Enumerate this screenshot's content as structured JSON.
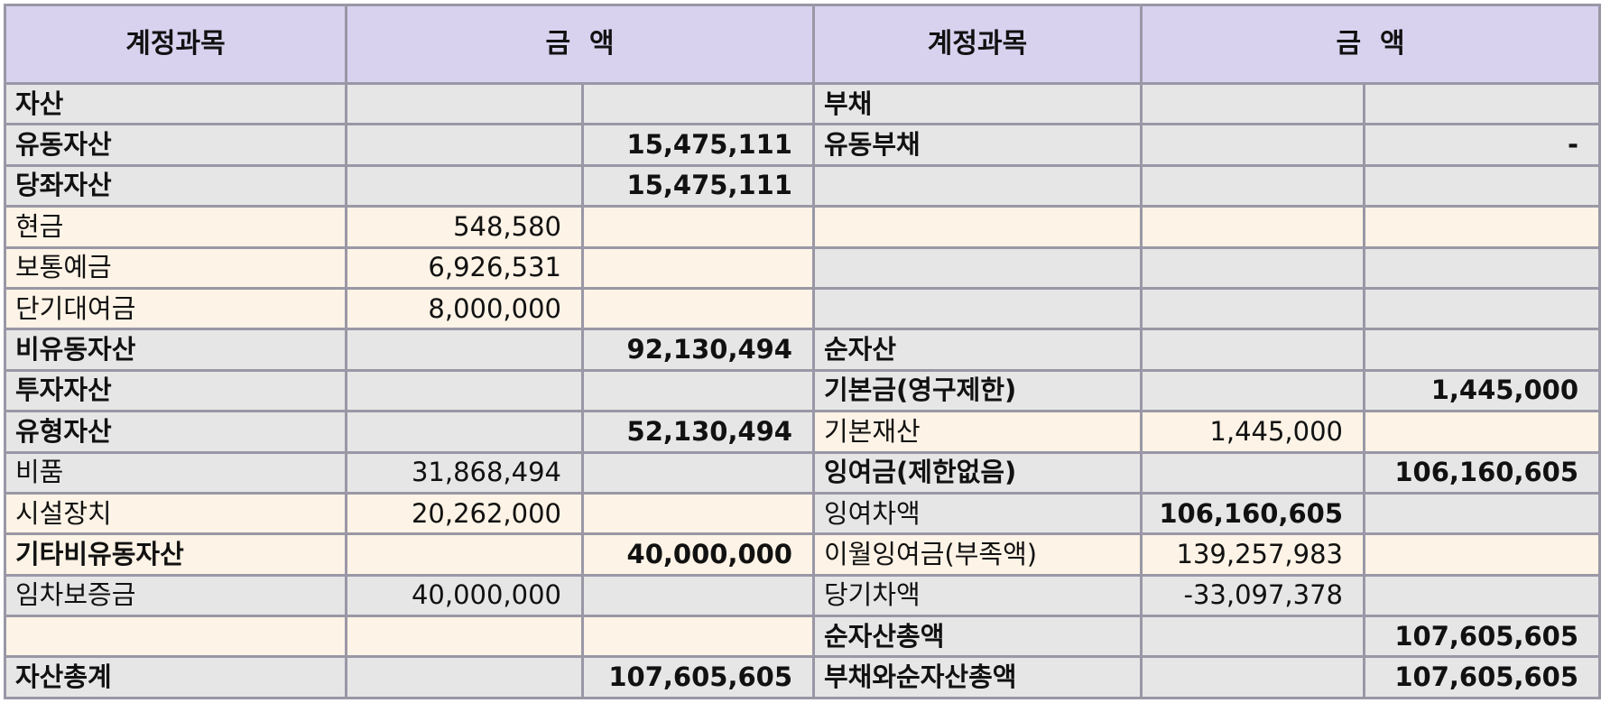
{
  "header": {
    "account_left": "계정과목",
    "amount_left": "금  액",
    "account_right": "계정과목",
    "amount_right": "금  액"
  },
  "rows": [
    {
      "l_name": "자산",
      "l_a": "",
      "l_b": "",
      "r_name": "부채",
      "r_a": "",
      "r_b": ""
    },
    {
      "l_name": "유동자산",
      "l_a": "",
      "l_b": "15,475,111",
      "r_name": "유동부채",
      "r_a": "",
      "r_b": "-"
    },
    {
      "l_name": "당좌자산",
      "l_a": "",
      "l_b": "15,475,111",
      "r_name": "",
      "r_a": "",
      "r_b": ""
    },
    {
      "l_name": "현금",
      "l_a": "548,580",
      "l_b": "",
      "r_name": "",
      "r_a": "",
      "r_b": ""
    },
    {
      "l_name": "보통예금",
      "l_a": "6,926,531",
      "l_b": "",
      "r_name": "",
      "r_a": "",
      "r_b": ""
    },
    {
      "l_name": "단기대여금",
      "l_a": "8,000,000",
      "l_b": "",
      "r_name": "",
      "r_a": "",
      "r_b": ""
    },
    {
      "l_name": "비유동자산",
      "l_a": "",
      "l_b": "92,130,494",
      "r_name": "순자산",
      "r_a": "",
      "r_b": ""
    },
    {
      "l_name": "투자자산",
      "l_a": "",
      "l_b": "",
      "r_name": "기본금(영구제한)",
      "r_a": "",
      "r_b": "1,445,000"
    },
    {
      "l_name": "유형자산",
      "l_a": "",
      "l_b": "52,130,494",
      "r_name": "기본재산",
      "r_a": "1,445,000",
      "r_b": ""
    },
    {
      "l_name": "비품",
      "l_a": "31,868,494",
      "l_b": "",
      "r_name": "잉여금(제한없음)",
      "r_a": "",
      "r_b": "106,160,605"
    },
    {
      "l_name": "시설장치",
      "l_a": "20,262,000",
      "l_b": "",
      "r_name": "잉여차액",
      "r_a": "106,160,605",
      "r_b": ""
    },
    {
      "l_name": "기타비유동자산",
      "l_a": "",
      "l_b": "40,000,000",
      "r_name": "이월잉여금(부족액)",
      "r_a": "139,257,983",
      "r_b": ""
    },
    {
      "l_name": "임차보증금",
      "l_a": "40,000,000",
      "l_b": "",
      "r_name": "당기차액",
      "r_a": "-33,097,378",
      "r_b": ""
    },
    {
      "l_name": "",
      "l_a": "",
      "l_b": "",
      "r_name": "순자산총액",
      "r_a": "",
      "r_b": "107,605,605"
    },
    {
      "l_name": "자산총계",
      "l_a": "",
      "l_b": "107,605,605",
      "r_name": "부채와순자산총액",
      "r_a": "",
      "r_b": "107,605,605"
    }
  ]
}
